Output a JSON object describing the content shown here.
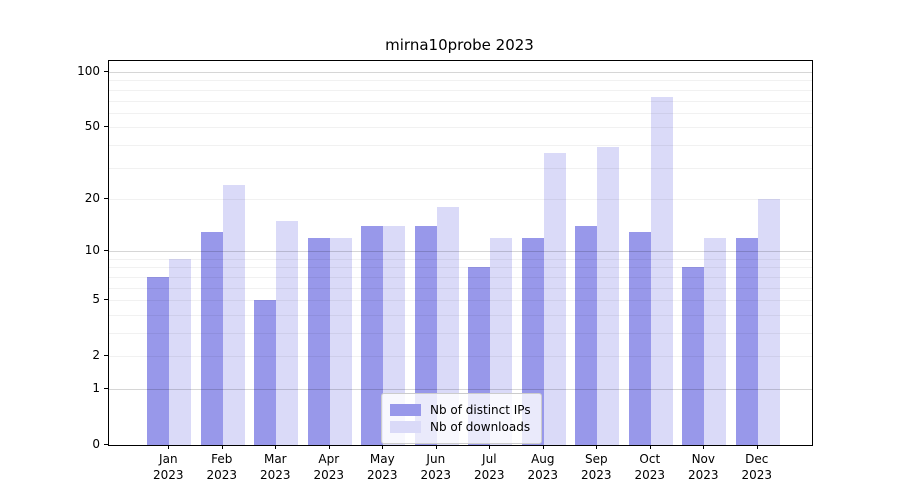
{
  "title": "mirna10probe 2023",
  "chart_data": {
    "type": "bar",
    "title": "mirna10probe 2023",
    "xlabel": "",
    "ylabel": "",
    "scale": "log10(value+1)",
    "categories": [
      "Jan",
      "Feb",
      "Mar",
      "Apr",
      "May",
      "Jun",
      "Jul",
      "Aug",
      "Sep",
      "Oct",
      "Nov",
      "Dec"
    ],
    "year_label": "2023",
    "series": [
      {
        "name": "Nb of distinct IPs",
        "color": "#9898ea",
        "values": [
          7,
          13,
          5,
          12,
          14,
          14,
          8,
          12,
          14,
          13,
          8,
          12
        ]
      },
      {
        "name": "Nb of downloads",
        "color": "#dadaf8",
        "values": [
          9,
          24,
          15,
          12,
          14,
          18,
          12,
          36,
          39,
          73,
          12,
          20
        ]
      }
    ],
    "yticks": [
      0,
      1,
      2,
      5,
      10,
      20,
      50,
      100
    ],
    "major_gridlines": [
      1,
      10,
      100
    ],
    "minor_gridlines": [
      2,
      3,
      4,
      5,
      6,
      7,
      8,
      9,
      20,
      30,
      40,
      50,
      60,
      70,
      80,
      90
    ],
    "ylim": [
      0,
      100
    ],
    "legend_position": "bottom-center"
  }
}
